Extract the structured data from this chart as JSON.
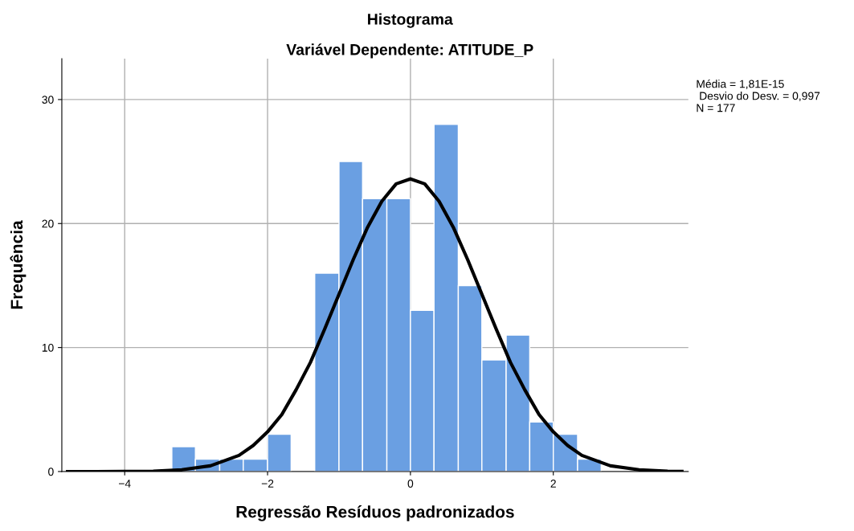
{
  "chart_data": {
    "type": "histogram",
    "title": "Histograma",
    "subtitle": "Variável Dependente: ATITUDE_P",
    "xlabel": "Regressão Resíduos padronizados",
    "ylabel": "Frequência",
    "bins": [
      -3.34,
      -3.01,
      -2.67,
      -2.34,
      -2.0,
      -1.67,
      -1.34,
      -1.0,
      -0.67,
      -0.33,
      0.0,
      0.33,
      0.67,
      1.0,
      1.34,
      1.67,
      2.0,
      2.34,
      2.67
    ],
    "values": [
      2,
      1,
      1,
      1,
      3,
      0,
      16,
      25,
      22,
      22,
      13,
      28,
      15,
      9,
      11,
      4,
      3,
      1
    ],
    "color": "#6a9fe2",
    "series": [
      {
        "type": "line",
        "color": "#000000",
        "x": [
          -4.8,
          -4.4,
          -4.0,
          -3.6,
          -3.2,
          -2.8,
          -2.4,
          -2.2,
          -2.0,
          -1.8,
          -1.6,
          -1.4,
          -1.2,
          -1.0,
          -0.8,
          -0.6,
          -0.4,
          -0.2,
          0.0,
          0.2,
          0.4,
          0.6,
          0.8,
          1.0,
          1.2,
          1.4,
          1.6,
          1.8,
          2.0,
          2.2,
          2.4,
          2.8,
          3.2,
          3.6,
          3.8
        ],
        "values": [
          0,
          0,
          0.01,
          0.03,
          0.14,
          0.46,
          1.3,
          2.1,
          3.2,
          4.6,
          6.6,
          8.8,
          11.5,
          14.3,
          17.1,
          19.7,
          21.8,
          23.2,
          23.6,
          23.2,
          21.8,
          19.7,
          17.1,
          14.3,
          11.5,
          8.8,
          6.6,
          4.6,
          3.2,
          2.1,
          1.3,
          0.46,
          0.14,
          0.03,
          0.01
        ]
      }
    ],
    "xlim": [
      -4.88,
      3.89
    ],
    "ylim": [
      0,
      33.3
    ],
    "xticks": [
      {
        "value": -4,
        "label": "−4"
      },
      {
        "value": -2,
        "label": "−2"
      },
      0,
      2
    ],
    "yticks": [
      0,
      10,
      20,
      30
    ],
    "grid": true,
    "annotations": [
      "Média = 1,81E-15\n Desvio do Desv. = 0,997\nN = 177"
    ]
  }
}
